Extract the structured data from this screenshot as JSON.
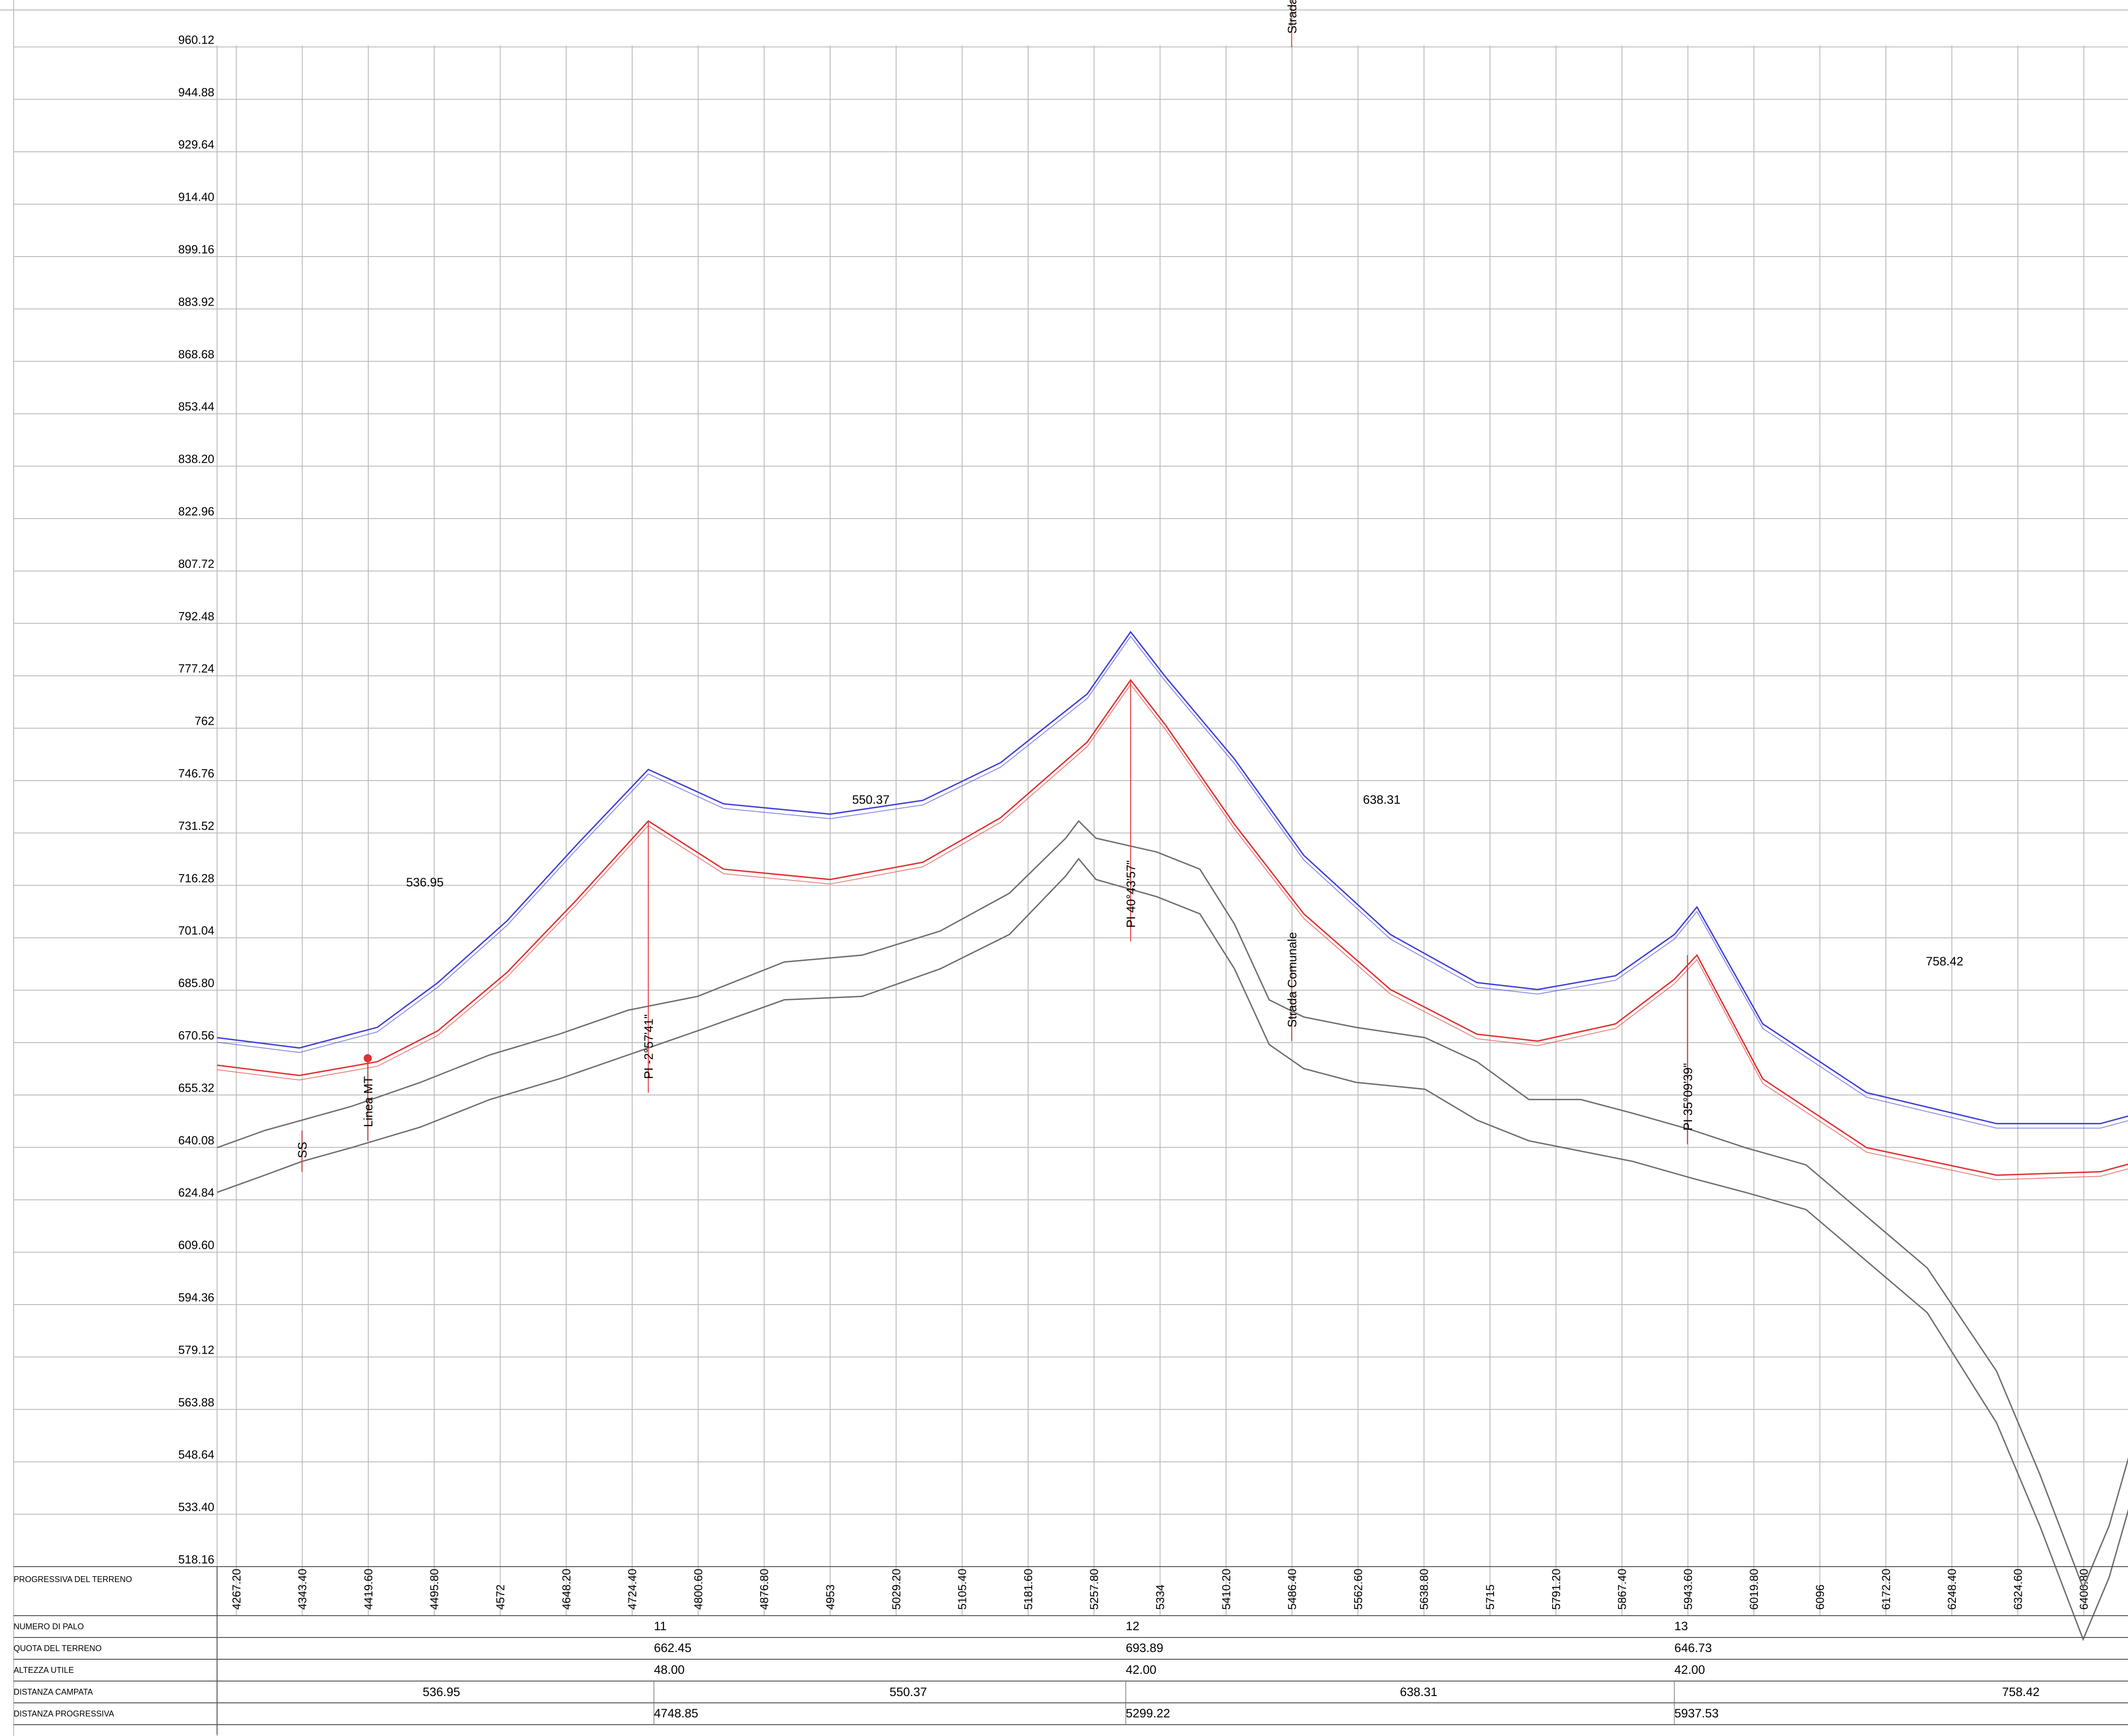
{
  "chart_data": {
    "type": "line",
    "y_ticks": [
      "960.12",
      "944.88",
      "929.64",
      "914.40",
      "899.16",
      "883.92",
      "868.68",
      "853.44",
      "838.20",
      "822.96",
      "807.72",
      "792.48",
      "777.24",
      "762",
      "746.76",
      "731.52",
      "716.28",
      "701.04",
      "685.80",
      "670.56",
      "655.32",
      "640.08",
      "624.84",
      "609.60",
      "594.36",
      "579.12",
      "563.88",
      "548.64",
      "533.40",
      "518.16"
    ],
    "x_ticks": [
      "4267.20",
      "4343.40",
      "4419.60",
      "4495.80",
      "4572",
      "4648.20",
      "4724.40",
      "4800.60",
      "4876.80",
      "4953",
      "5029.20",
      "5105.40",
      "5181.60",
      "5257.80",
      "5334",
      "5410.20",
      "5486.40",
      "5562.60",
      "5638.80",
      "5715",
      "5791.20",
      "5867.40",
      "5943.60",
      "6019.80",
      "6096",
      "6172.20",
      "6248.40",
      "6324.60",
      "6400.80"
    ],
    "xlim": [
      4245,
      6464
    ],
    "ylim": [
      518.16,
      960.12
    ],
    "grid": true,
    "series": [
      {
        "color": "#3f3fd8",
        "points": [
          [
            4245,
            672
          ],
          [
            4340,
            669
          ],
          [
            4430,
            675
          ],
          [
            4500,
            688
          ],
          [
            4580,
            706
          ],
          [
            4660,
            728
          ],
          [
            4743,
            750
          ],
          [
            4830,
            740
          ],
          [
            4953,
            737
          ],
          [
            5060,
            741
          ],
          [
            5150,
            752
          ],
          [
            5250,
            772
          ],
          [
            5300,
            790
          ],
          [
            5340,
            777
          ],
          [
            5420,
            753
          ],
          [
            5500,
            725
          ],
          [
            5600,
            702
          ],
          [
            5700,
            688
          ],
          [
            5770,
            686
          ],
          [
            5860,
            690
          ],
          [
            5928,
            702
          ],
          [
            5954,
            710
          ],
          [
            6030,
            676
          ],
          [
            6150,
            656
          ],
          [
            6300,
            647
          ],
          [
            6420,
            647
          ],
          [
            6464,
            650
          ]
        ]
      },
      {
        "color": "#e03030",
        "points": [
          [
            4245,
            664
          ],
          [
            4340,
            661
          ],
          [
            4430,
            665
          ],
          [
            4500,
            674
          ],
          [
            4580,
            691
          ],
          [
            4660,
            712
          ],
          [
            4743,
            735
          ],
          [
            4830,
            721
          ],
          [
            4953,
            718
          ],
          [
            5060,
            723
          ],
          [
            5150,
            736
          ],
          [
            5250,
            758
          ],
          [
            5300,
            776
          ],
          [
            5340,
            763
          ],
          [
            5420,
            734
          ],
          [
            5500,
            708
          ],
          [
            5600,
            686
          ],
          [
            5700,
            673
          ],
          [
            5770,
            671
          ],
          [
            5860,
            676
          ],
          [
            5928,
            689
          ],
          [
            5954,
            696
          ],
          [
            6030,
            660
          ],
          [
            6150,
            640
          ],
          [
            6300,
            632
          ],
          [
            6420,
            633
          ],
          [
            6464,
            636
          ]
        ]
      },
      {
        "color": "#6e6e6e",
        "points": [
          [
            4245,
            640
          ],
          [
            4300,
            645
          ],
          [
            4343,
            648
          ],
          [
            4400,
            652
          ],
          [
            4480,
            659
          ],
          [
            4560,
            667
          ],
          [
            4640,
            673
          ],
          [
            4720,
            680
          ],
          [
            4800,
            684
          ],
          [
            4900,
            694
          ],
          [
            4990,
            696
          ],
          [
            5080,
            703
          ],
          [
            5160,
            714
          ],
          [
            5225,
            730
          ],
          [
            5240,
            735
          ],
          [
            5260,
            730
          ],
          [
            5330,
            726
          ],
          [
            5380,
            721
          ],
          [
            5420,
            705
          ],
          [
            5460,
            683
          ],
          [
            5500,
            678
          ],
          [
            5560,
            675
          ],
          [
            5640,
            672
          ],
          [
            5700,
            665
          ],
          [
            5760,
            654
          ],
          [
            5820,
            654
          ],
          [
            5880,
            650
          ],
          [
            5950,
            645
          ],
          [
            6010,
            640
          ],
          [
            6080,
            635
          ],
          [
            6150,
            620
          ],
          [
            6220,
            605
          ],
          [
            6300,
            575
          ],
          [
            6350,
            545
          ],
          [
            6400,
            512
          ],
          [
            6430,
            530
          ],
          [
            6464,
            560
          ]
        ]
      },
      {
        "color": "#6e6e6e",
        "points": [
          [
            4245,
            627
          ],
          [
            4300,
            632
          ],
          [
            4343,
            636
          ],
          [
            4400,
            640
          ],
          [
            4480,
            646
          ],
          [
            4560,
            654
          ],
          [
            4640,
            660
          ],
          [
            4720,
            667
          ],
          [
            4800,
            674
          ],
          [
            4900,
            683
          ],
          [
            4990,
            684
          ],
          [
            5080,
            692
          ],
          [
            5160,
            702
          ],
          [
            5225,
            719
          ],
          [
            5240,
            724
          ],
          [
            5260,
            718
          ],
          [
            5330,
            713
          ],
          [
            5380,
            708
          ],
          [
            5420,
            692
          ],
          [
            5460,
            670
          ],
          [
            5500,
            663
          ],
          [
            5560,
            659
          ],
          [
            5640,
            657
          ],
          [
            5700,
            648
          ],
          [
            5760,
            642
          ],
          [
            5820,
            639
          ],
          [
            5880,
            636
          ],
          [
            5950,
            631
          ],
          [
            6010,
            627
          ],
          [
            6080,
            622
          ],
          [
            6150,
            607
          ],
          [
            6220,
            592
          ],
          [
            6300,
            560
          ],
          [
            6350,
            530
          ],
          [
            6400,
            497
          ],
          [
            6430,
            515
          ],
          [
            6464,
            545
          ]
        ]
      }
    ],
    "spans": [
      {
        "label": "536.95",
        "x": 4485,
        "y": 716
      },
      {
        "label": "550.37",
        "x": 5000,
        "y": 740
      },
      {
        "label": "638.31",
        "x": 5590,
        "y": 740
      },
      {
        "label": "758.42",
        "x": 6240,
        "y": 693
      }
    ],
    "annotations": [
      {
        "label": "SS",
        "x": 4343,
        "y1": 633,
        "y2": 645
      },
      {
        "label": "Linea MT",
        "x": 4419,
        "y1": 642,
        "y2": 666
      },
      {
        "label": "PI -2°57'41\"",
        "x": 4743,
        "y1": 656,
        "y2": 735
      },
      {
        "label": "PI 40°43'57\"",
        "x": 5300,
        "y1": 700,
        "y2": 776
      },
      {
        "label": "Strada Comunale",
        "x": 5486,
        "y1": 671,
        "y2": 693
      },
      {
        "label": "PI 35°09'39\"",
        "x": 5943,
        "y1": 641,
        "y2": 696
      },
      {
        "label": "Strada C",
        "x": 5486,
        "y1": 960,
        "y2": 975
      }
    ]
  },
  "table": {
    "rows": [
      "PROGRESSIVA DEL TERRENO",
      "NUMERO DI PALO",
      "QUOTA DEL TERRENO",
      "ALTEZZA UTILE",
      "DISTANZA CAMPATA",
      "DISTANZA PROGRESSIVA"
    ],
    "poles": [
      {
        "number": "11",
        "quota": "662.45",
        "altezza": "48.00",
        "progressiva": "4748.85"
      },
      {
        "number": "12",
        "quota": "693.89",
        "altezza": "42.00",
        "progressiva": "5299.22"
      },
      {
        "number": "13",
        "quota": "646.73",
        "altezza": "42.00",
        "progressiva": "5937.53"
      }
    ],
    "campate": [
      "536.95",
      "550.37",
      "638.31",
      "758.42"
    ]
  }
}
